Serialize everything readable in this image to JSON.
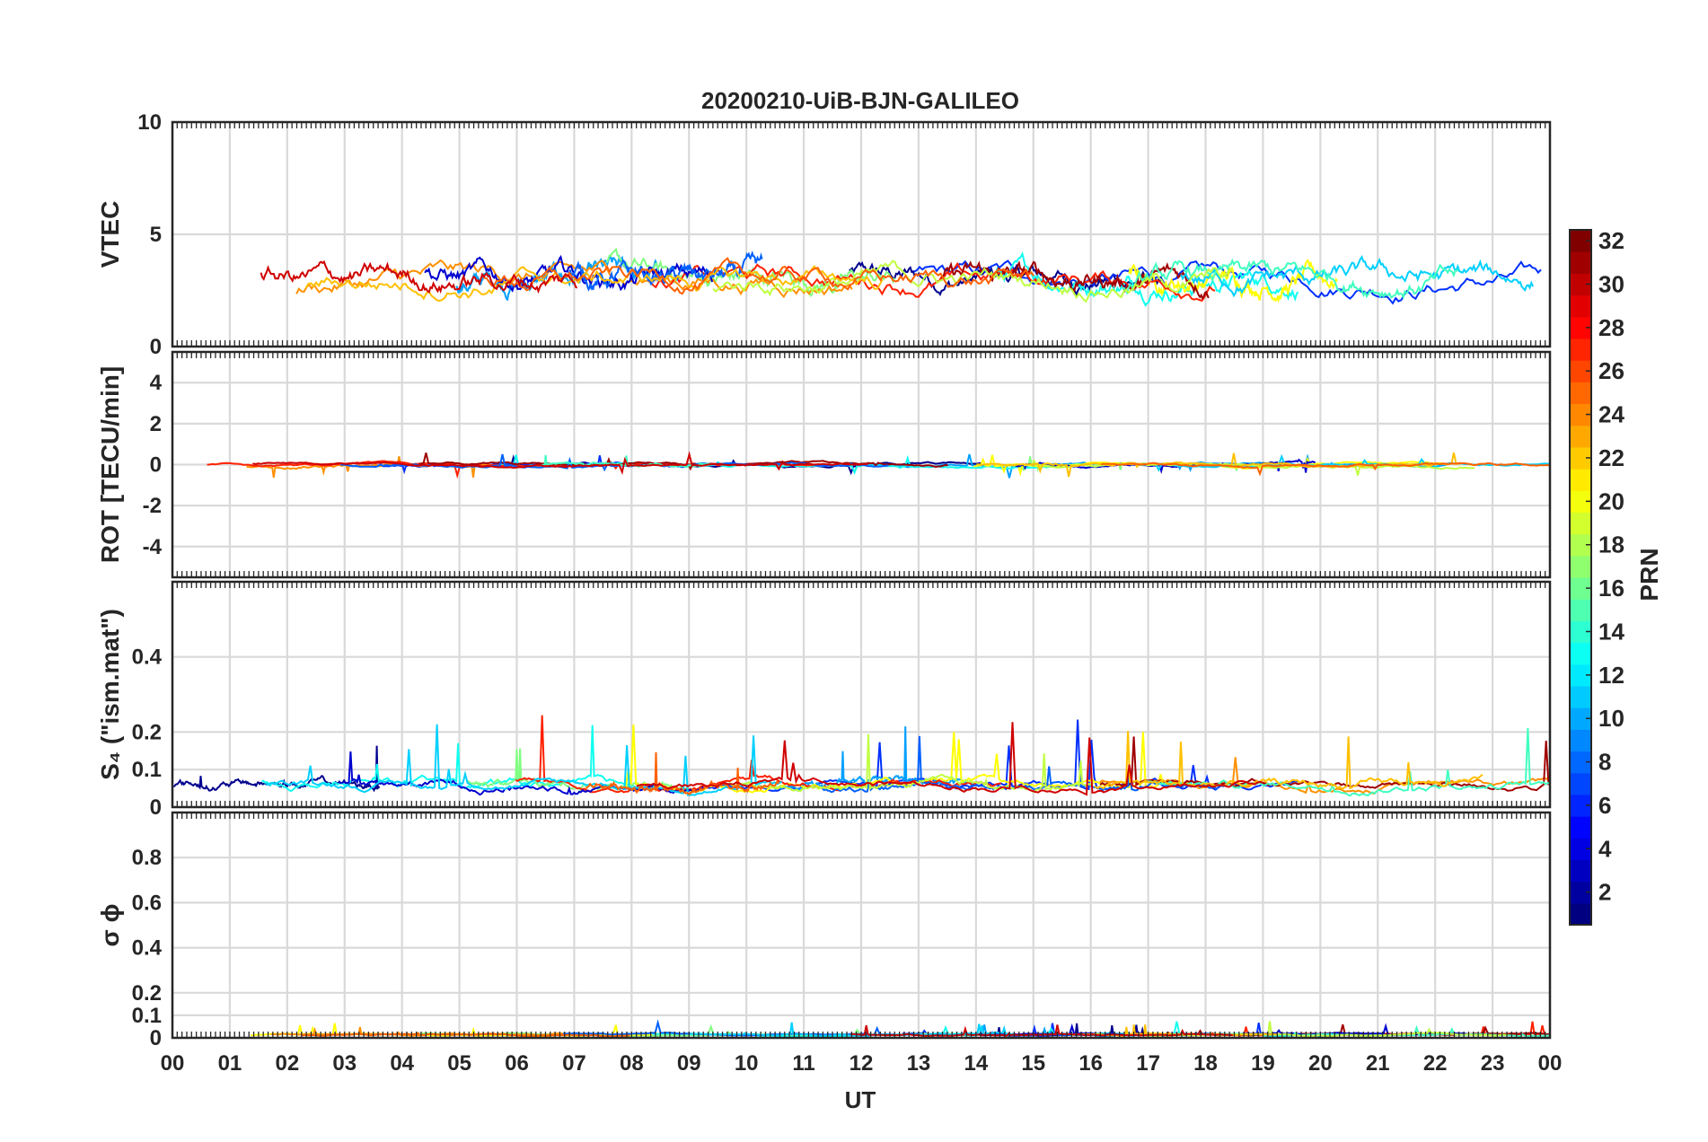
{
  "chart_data": {
    "type": "line",
    "title": "20200210-UiB-BJN-GALILEO",
    "xlabel": "UT",
    "x_ticks": [
      "00",
      "01",
      "02",
      "03",
      "04",
      "05",
      "06",
      "07",
      "08",
      "09",
      "10",
      "11",
      "12",
      "13",
      "14",
      "15",
      "16",
      "17",
      "18",
      "19",
      "20",
      "21",
      "22",
      "23",
      "00"
    ],
    "xlim": [
      0,
      24
    ],
    "grid": true,
    "panels": [
      {
        "ylabel": "VTEC",
        "ylim": [
          0,
          10
        ],
        "yticks": [
          0,
          5,
          10
        ],
        "ytick_labels": [
          "0",
          "5",
          "10"
        ],
        "baseline": 3.0,
        "variation": 1.3
      },
      {
        "ylabel": "ROT [TECU/min]",
        "ylim": [
          -5.5,
          5.5
        ],
        "yticks": [
          -4,
          -2,
          0,
          2,
          4
        ],
        "ytick_labels": [
          "-4",
          "-2",
          "0",
          "2",
          "4"
        ],
        "baseline": 0.0,
        "variation": 0.2
      },
      {
        "ylabel": "S₄ (\"ism.mat\")",
        "ylim": [
          0,
          0.6
        ],
        "yticks": [
          0,
          0.1,
          0.2,
          0.4
        ],
        "ytick_labels": [
          "0",
          "0.1",
          "0.2",
          "0.4"
        ],
        "baseline": 0.06,
        "variation": 0.03
      },
      {
        "ylabel": "σ ϕ",
        "ylim": [
          0,
          1.0
        ],
        "yticks": [
          0,
          0.1,
          0.2,
          0.4,
          0.6,
          0.8
        ],
        "ytick_labels": [
          "0",
          "0.1",
          "0.2",
          "0.4",
          "0.6",
          "0.8"
        ],
        "baseline": 0.015,
        "variation": 0.01
      }
    ],
    "colorbar": {
      "label": "PRN",
      "range": [
        1,
        32
      ],
      "tick_labels": [
        "2",
        "4",
        "6",
        "8",
        "10",
        "12",
        "14",
        "16",
        "18",
        "20",
        "22",
        "24",
        "26",
        "28",
        "30",
        "32"
      ],
      "colormap": "jet"
    },
    "series_colors": [
      "#00008f",
      "#0030ff",
      "#00a0ff",
      "#10ffef",
      "#80ff80",
      "#ffff00",
      "#ff9000",
      "#ff2000",
      "#a00000",
      "#0000d0",
      "#0060ff",
      "#00d0ff",
      "#40ffc0",
      "#c0ff40",
      "#ffc000",
      "#ff6000",
      "#d00000"
    ]
  }
}
